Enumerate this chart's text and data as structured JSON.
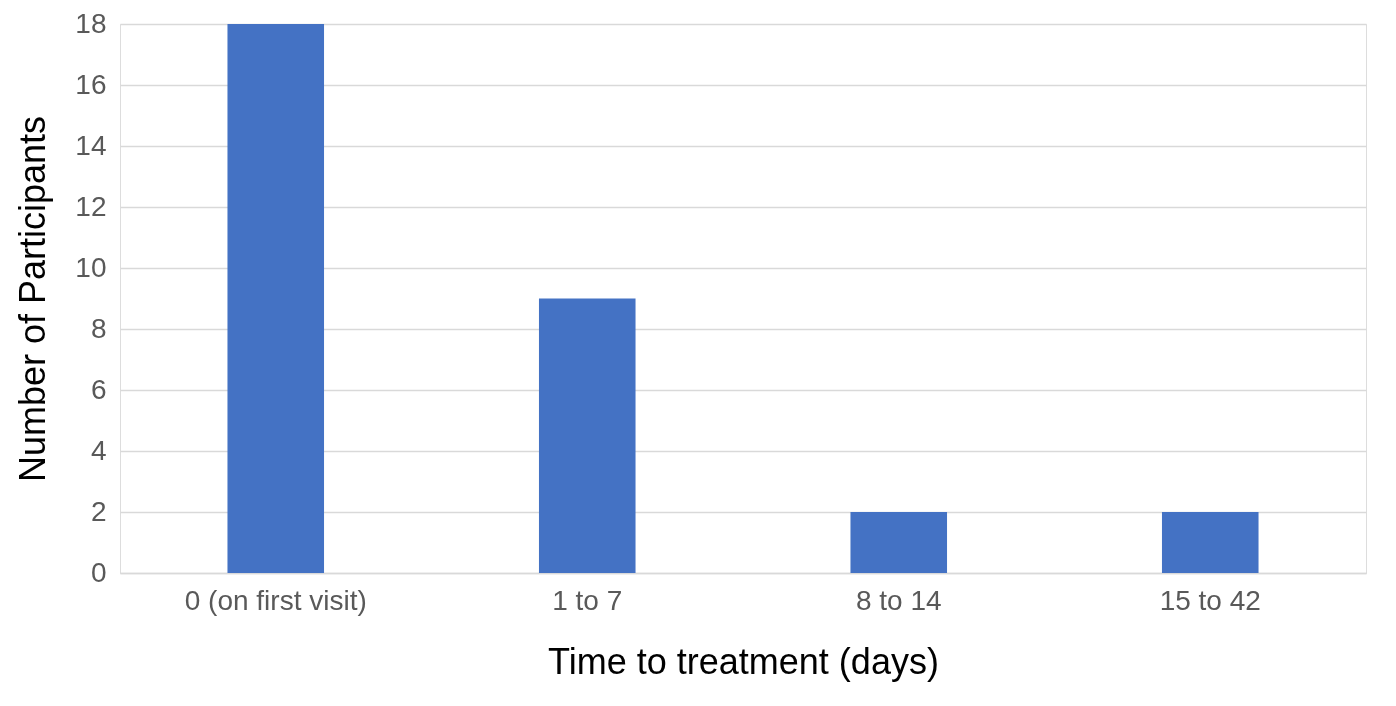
{
  "chart_data": {
    "type": "bar",
    "xlabel": "Time to treatment (days)",
    "ylabel": "Number of Participants",
    "categories": [
      "0 (on first visit)",
      "1 to 7",
      "8 to 14",
      "15 to 42"
    ],
    "values": [
      18,
      9,
      2,
      2
    ],
    "color": "#4472c4",
    "ylim": [
      0,
      18
    ],
    "yticks": [
      0,
      2,
      4,
      6,
      8,
      10,
      12,
      14,
      16,
      18
    ],
    "grid": "y"
  }
}
